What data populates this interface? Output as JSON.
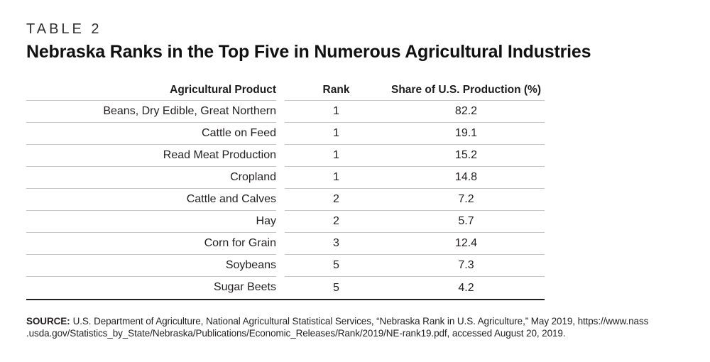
{
  "page": {
    "table_label": "TABLE 2",
    "title": "Nebraska Ranks in the Top Five in Numerous Agricultural Industries"
  },
  "table": {
    "columns": [
      "Agricultural Product",
      "Rank",
      "Share of U.S. Production (%)"
    ],
    "rows": [
      {
        "product": "Beans, Dry Edible, Great Northern",
        "rank": "1",
        "share": "82.2"
      },
      {
        "product": "Cattle on Feed",
        "rank": "1",
        "share": "19.1"
      },
      {
        "product": "Read Meat Production",
        "rank": "1",
        "share": "15.2"
      },
      {
        "product": "Cropland",
        "rank": "1",
        "share": "14.8"
      },
      {
        "product": "Cattle and Calves",
        "rank": "2",
        "share": "7.2"
      },
      {
        "product": "Hay",
        "rank": "2",
        "share": "5.7"
      },
      {
        "product": "Corn for Grain",
        "rank": "3",
        "share": "12.4"
      },
      {
        "product": "Soybeans",
        "rank": "5",
        "share": "7.3"
      },
      {
        "product": "Sugar Beets",
        "rank": "5",
        "share": "4.2"
      }
    ]
  },
  "source": {
    "label": "SOURCE:",
    "line1": "U.S. Department of Agriculture, National Agricultural Statistical Services, “Nebraska Rank in U.S. Agriculture,” May 2019, https://www.nass",
    "line2": ".usda.gov/Statistics_by_State/Nebraska/Publications/Economic_Releases/Rank/2019/NE-rank19.pdf, accessed August 20, 2019."
  },
  "colors": {
    "text": "#231f20",
    "rule": "#c7c7c7",
    "bottom_rule": "#231f20",
    "background": "#ffffff"
  }
}
